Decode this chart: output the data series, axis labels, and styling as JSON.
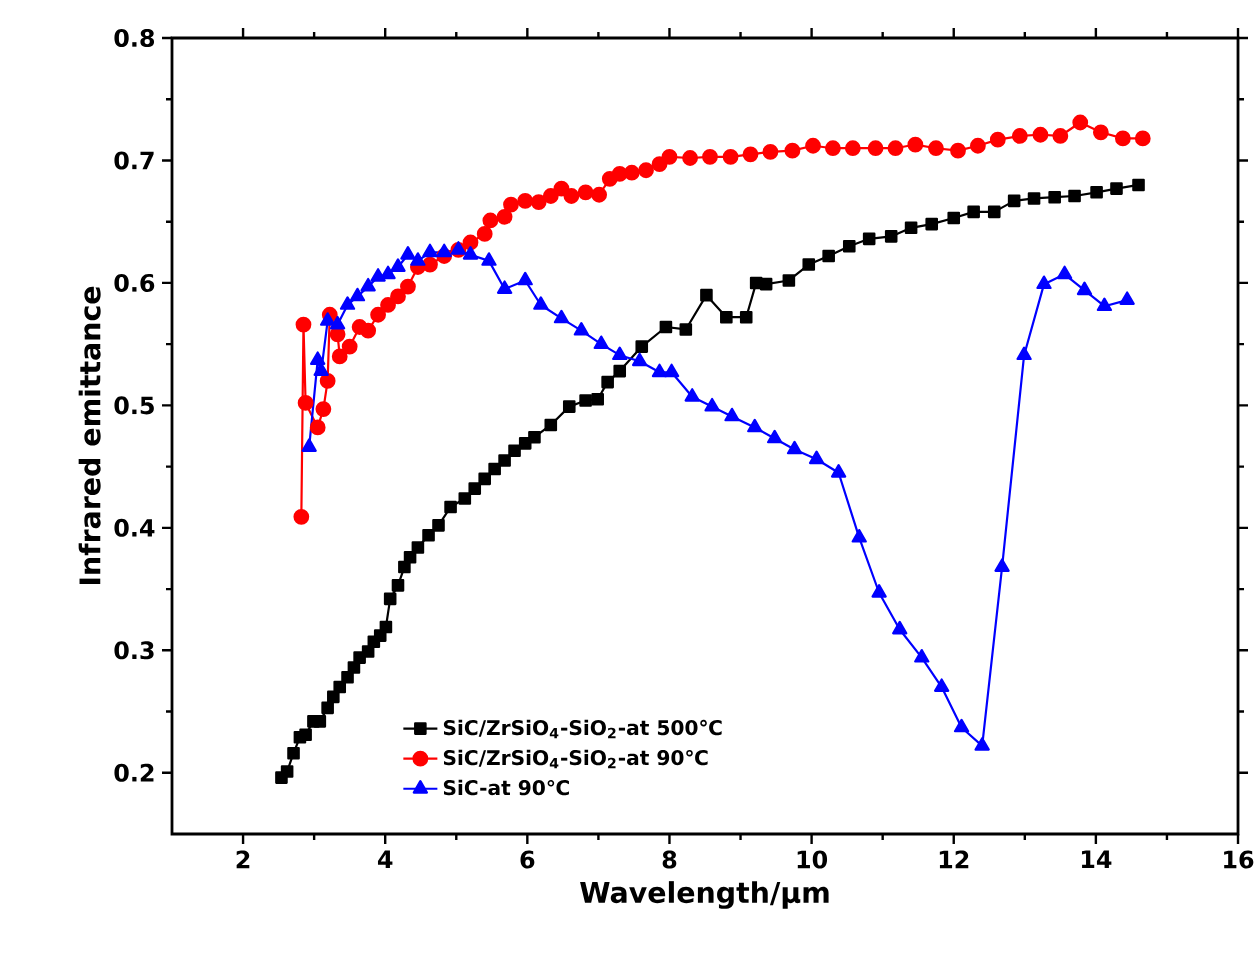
{
  "chart_data": {
    "type": "line",
    "xlabel": "Wavelength/μm",
    "ylabel": "Infrared emittance",
    "xlim": [
      1,
      16
    ],
    "xticks": [
      2,
      4,
      6,
      8,
      10,
      12,
      14,
      16
    ],
    "ylim": [
      0.15,
      0.8
    ],
    "yticks": [
      0.2,
      0.3,
      0.4,
      0.5,
      0.6,
      0.7,
      0.8
    ],
    "grid": false,
    "legend": "bottom left",
    "series": [
      {
        "name": "SiC/ZrSiO$_{4}$-SiO$_{2}$-at 500℃",
        "color": "#000000",
        "marker": "square",
        "x": [
          2.54,
          2.62,
          2.71,
          2.8,
          2.88,
          2.99,
          3.08,
          3.19,
          3.27,
          3.36,
          3.47,
          3.56,
          3.64,
          3.76,
          3.84,
          3.93,
          4.01,
          4.07,
          4.18,
          4.27,
          4.35,
          4.46,
          4.61,
          4.75,
          4.92,
          5.12,
          5.26,
          5.4,
          5.54,
          5.68,
          5.82,
          5.97,
          6.1,
          6.33,
          6.59,
          6.82,
          6.99,
          7.13,
          7.3,
          7.61,
          7.95,
          8.23,
          8.52,
          8.8,
          9.08,
          9.22,
          9.36,
          9.68,
          9.96,
          10.24,
          10.53,
          10.81,
          11.12,
          11.4,
          11.69,
          12.0,
          12.28,
          12.57,
          12.85,
          13.13,
          13.42,
          13.7,
          14.01,
          14.29,
          14.6
        ],
        "values": [
          0.196,
          0.201,
          0.216,
          0.229,
          0.231,
          0.242,
          0.242,
          0.253,
          0.262,
          0.27,
          0.278,
          0.286,
          0.294,
          0.299,
          0.307,
          0.312,
          0.319,
          0.342,
          0.353,
          0.368,
          0.376,
          0.384,
          0.394,
          0.402,
          0.417,
          0.424,
          0.432,
          0.44,
          0.448,
          0.455,
          0.463,
          0.469,
          0.474,
          0.484,
          0.499,
          0.504,
          0.505,
          0.519,
          0.528,
          0.548,
          0.564,
          0.562,
          0.59,
          0.572,
          0.572,
          0.6,
          0.599,
          0.602,
          0.615,
          0.622,
          0.63,
          0.636,
          0.638,
          0.645,
          0.648,
          0.653,
          0.658,
          0.658,
          0.667,
          0.669,
          0.67,
          0.671,
          0.674,
          0.677,
          0.68
        ]
      },
      {
        "name": "SiC/ZrSiO$_{4}$-SiO$_{2}$-at 90℃",
        "color": "#ff0000",
        "marker": "circle",
        "x": [
          2.82,
          2.85,
          2.88,
          3.05,
          3.13,
          3.19,
          3.22,
          3.33,
          3.36,
          3.5,
          3.64,
          3.76,
          3.9,
          4.04,
          4.18,
          4.32,
          4.46,
          4.63,
          4.83,
          5.03,
          5.2,
          5.4,
          5.48,
          5.68,
          5.77,
          5.97,
          6.16,
          6.33,
          6.48,
          6.62,
          6.82,
          7.01,
          7.16,
          7.3,
          7.47,
          7.67,
          7.86,
          8.0,
          8.29,
          8.57,
          8.86,
          9.14,
          9.42,
          9.73,
          10.02,
          10.3,
          10.58,
          10.9,
          11.18,
          11.46,
          11.75,
          12.06,
          12.34,
          12.62,
          12.93,
          13.22,
          13.5,
          13.78,
          14.07,
          14.38,
          14.66
        ],
        "values": [
          0.409,
          0.566,
          0.502,
          0.482,
          0.497,
          0.52,
          0.574,
          0.558,
          0.54,
          0.548,
          0.564,
          0.561,
          0.574,
          0.582,
          0.589,
          0.597,
          0.613,
          0.615,
          0.622,
          0.627,
          0.633,
          0.64,
          0.651,
          0.654,
          0.664,
          0.667,
          0.666,
          0.671,
          0.677,
          0.671,
          0.674,
          0.672,
          0.685,
          0.689,
          0.69,
          0.692,
          0.697,
          0.703,
          0.702,
          0.703,
          0.703,
          0.705,
          0.707,
          0.708,
          0.712,
          0.71,
          0.71,
          0.71,
          0.71,
          0.713,
          0.71,
          0.708,
          0.712,
          0.717,
          0.72,
          0.721,
          0.72,
          0.731,
          0.723,
          0.718,
          0.718
        ]
      },
      {
        "name": "SiC-at 90℃",
        "color": "#0000ff",
        "marker": "triangle",
        "x": [
          2.93,
          3.05,
          3.1,
          3.19,
          3.33,
          3.47,
          3.61,
          3.76,
          3.9,
          4.04,
          4.18,
          4.32,
          4.46,
          4.63,
          4.83,
          5.03,
          5.2,
          5.46,
          5.68,
          5.97,
          6.19,
          6.48,
          6.76,
          7.04,
          7.3,
          7.58,
          7.86,
          8.03,
          8.32,
          8.6,
          8.88,
          9.2,
          9.48,
          9.76,
          10.07,
          10.38,
          10.67,
          10.95,
          11.24,
          11.55,
          11.83,
          12.11,
          12.4,
          12.68,
          12.99,
          13.27,
          13.56,
          13.84,
          14.12,
          14.44
        ],
        "values": [
          0.466,
          0.537,
          0.528,
          0.569,
          0.566,
          0.582,
          0.589,
          0.597,
          0.605,
          0.607,
          0.613,
          0.623,
          0.618,
          0.625,
          0.625,
          0.627,
          0.623,
          0.618,
          0.595,
          0.602,
          0.582,
          0.571,
          0.561,
          0.55,
          0.541,
          0.536,
          0.527,
          0.527,
          0.507,
          0.499,
          0.491,
          0.482,
          0.473,
          0.464,
          0.456,
          0.445,
          0.392,
          0.347,
          0.317,
          0.294,
          0.27,
          0.237,
          0.222,
          0.368,
          0.541,
          0.599,
          0.607,
          0.594,
          0.581,
          0.586
        ]
      }
    ]
  }
}
